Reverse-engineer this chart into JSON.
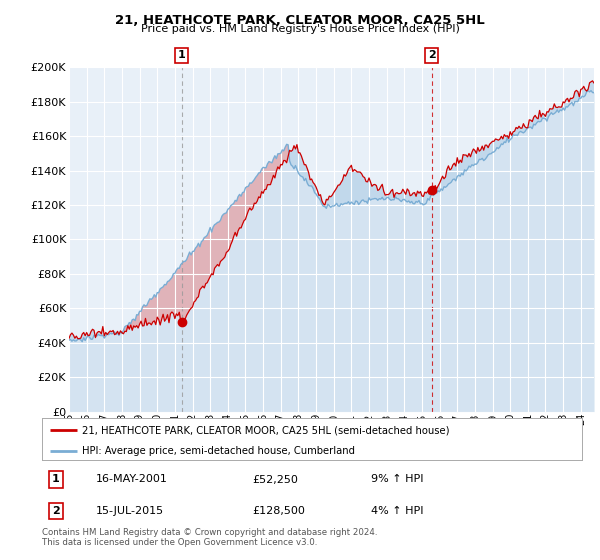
{
  "title": "21, HEATHCOTE PARK, CLEATOR MOOR, CA25 5HL",
  "subtitle": "Price paid vs. HM Land Registry's House Price Index (HPI)",
  "property_label": "21, HEATHCOTE PARK, CLEATOR MOOR, CA25 5HL (semi-detached house)",
  "hpi_label": "HPI: Average price, semi-detached house, Cumberland",
  "purchase1_date": "16-MAY-2001",
  "purchase1_price": 52250,
  "purchase1_hpi": "9% ↑ HPI",
  "purchase2_date": "15-JUL-2015",
  "purchase2_price": 128500,
  "purchase2_hpi": "4% ↑ HPI",
  "footer": "Contains HM Land Registry data © Crown copyright and database right 2024.\nThis data is licensed under the Open Government Licence v3.0.",
  "property_color": "#cc0000",
  "hpi_color": "#7aadd4",
  "fill_color": "#c8dff0",
  "background_color": "#e8f0f8",
  "ylim": [
    0,
    200000
  ],
  "yticks": [
    0,
    20000,
    40000,
    60000,
    80000,
    100000,
    120000,
    140000,
    160000,
    180000,
    200000
  ]
}
